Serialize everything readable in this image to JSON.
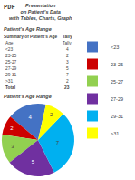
{
  "chart_data": [
    {
      "type": "table",
      "title": [
        "Presentation",
        "on Patient's Data",
        "with Tables, Charts, Graph"
      ],
      "subtitle": "Patient's Age Range",
      "annotations": [
        "PDF"
      ],
      "header": [
        "Summary of Patient's Age",
        "Tally"
      ],
      "subheader": [
        "Age",
        "Tally"
      ],
      "categories": [
        "<23",
        "23-25",
        "25-27",
        "27-29",
        "29-31",
        ">31"
      ],
      "values": [
        4,
        2,
        3,
        5,
        7,
        2
      ],
      "total": {
        "label": "Total",
        "value": 23
      }
    },
    {
      "type": "pie",
      "title": "Patient's Age Range",
      "categories": [
        "<23",
        "23-25",
        "25-27",
        "27-29",
        "29-31",
        ">31"
      ],
      "values": [
        4,
        2,
        3,
        5,
        7,
        2
      ],
      "colors": [
        "#4472c4",
        "#cc0000",
        "#92d050",
        "#7030a0",
        "#00b0f0",
        "#ffff00"
      ],
      "data_labels": true,
      "legend": "right"
    }
  ]
}
